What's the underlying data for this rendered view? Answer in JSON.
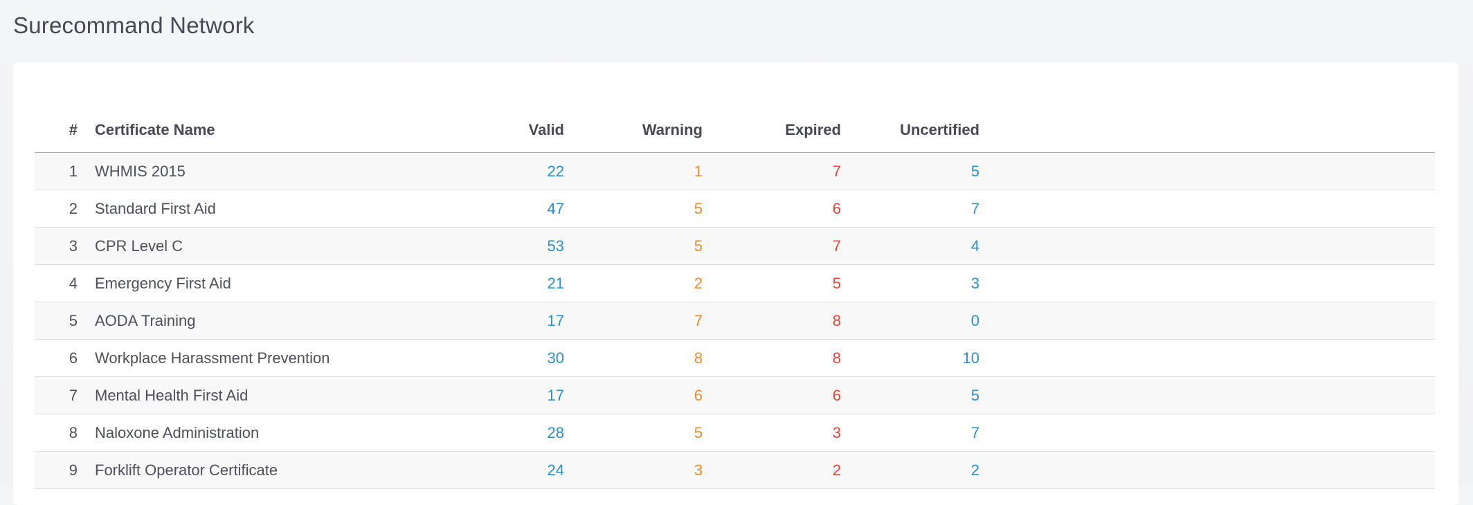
{
  "header": {
    "title": "Surecommand Network"
  },
  "table": {
    "columns": {
      "num": "#",
      "name": "Certificate Name",
      "valid": "Valid",
      "warning": "Warning",
      "expired": "Expired",
      "uncertified": "Uncertified"
    },
    "rows": [
      {
        "num": "1",
        "name": "WHMIS 2015",
        "valid": "22",
        "warning": "1",
        "expired": "7",
        "uncertified": "5"
      },
      {
        "num": "2",
        "name": "Standard First Aid",
        "valid": "47",
        "warning": "5",
        "expired": "6",
        "uncertified": "7"
      },
      {
        "num": "3",
        "name": "CPR Level C",
        "valid": "53",
        "warning": "5",
        "expired": "7",
        "uncertified": "4"
      },
      {
        "num": "4",
        "name": "Emergency First Aid",
        "valid": "21",
        "warning": "2",
        "expired": "5",
        "uncertified": "3"
      },
      {
        "num": "5",
        "name": "AODA Training",
        "valid": "17",
        "warning": "7",
        "expired": "8",
        "uncertified": "0"
      },
      {
        "num": "6",
        "name": "Workplace Harassment Prevention",
        "valid": "30",
        "warning": "8",
        "expired": "8",
        "uncertified": "10"
      },
      {
        "num": "7",
        "name": "Mental Health First Aid",
        "valid": "17",
        "warning": "6",
        "expired": "6",
        "uncertified": "5"
      },
      {
        "num": "8",
        "name": "Naloxone Administration",
        "valid": "28",
        "warning": "5",
        "expired": "3",
        "uncertified": "7"
      },
      {
        "num": "9",
        "name": "Forklift Operator Certificate",
        "valid": "24",
        "warning": "3",
        "expired": "2",
        "uncertified": "2"
      }
    ]
  },
  "colors": {
    "valid": "#2a90d0",
    "warning": "#ec8b2c",
    "expired": "#e2473a",
    "uncertified": "#2a90d0"
  }
}
